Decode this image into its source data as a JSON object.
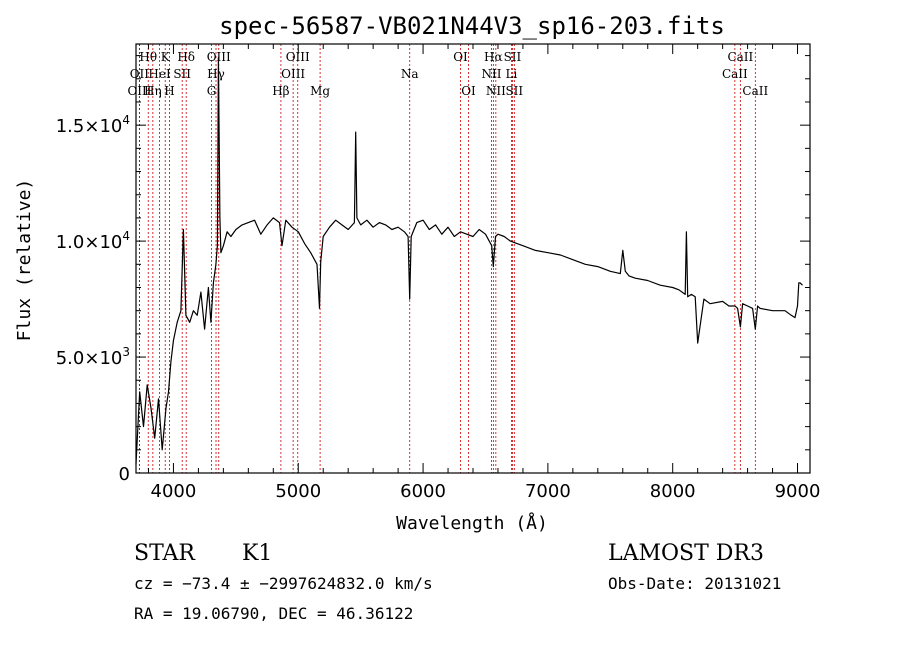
{
  "chart_data": {
    "type": "line",
    "title": "spec-56587-VB021N44V3_sp16-203.fits",
    "xlabel": "Wavelength (Å)",
    "ylabel": "Flux (relative)",
    "xlim": [
      3700,
      9100
    ],
    "ylim": [
      0,
      18500
    ],
    "x_ticks": [
      4000,
      5000,
      6000,
      7000,
      8000,
      9000
    ],
    "x_tick_labels": [
      "4000",
      "5000",
      "6000",
      "7000",
      "8000",
      "9000"
    ],
    "y_ticks": [
      0,
      5000,
      10000,
      15000
    ],
    "y_tick_labels": [
      {
        "mant": "0",
        "exp": ""
      },
      {
        "mant": "5.0×10",
        "exp": "3"
      },
      {
        "mant": "1.0×10",
        "exp": "4"
      },
      {
        "mant": "1.5×10",
        "exp": "4"
      }
    ],
    "series": [
      {
        "x": [
          3700,
          3730,
          3760,
          3790,
          3820,
          3850,
          3880,
          3910,
          3940,
          3960,
          3980,
          4000,
          4030,
          4060,
          4080,
          4100,
          4130,
          4160,
          4190,
          4220,
          4250,
          4280,
          4300,
          4320,
          4340,
          4352,
          4360,
          4372,
          4380,
          4400,
          4430,
          4460,
          4500,
          4550,
          4600,
          4650,
          4700,
          4750,
          4800,
          4850,
          4870,
          4900,
          4950,
          5000,
          5050,
          5100,
          5150,
          5170,
          5180,
          5200,
          5250,
          5300,
          5350,
          5400,
          5450,
          5460,
          5470,
          5500,
          5550,
          5600,
          5650,
          5700,
          5750,
          5800,
          5850,
          5880,
          5893,
          5905,
          5950,
          6000,
          6050,
          6100,
          6150,
          6200,
          6250,
          6300,
          6350,
          6400,
          6450,
          6500,
          6550,
          6563,
          6580,
          6600,
          6650,
          6700,
          6750,
          6800,
          6900,
          7000,
          7100,
          7200,
          7300,
          7400,
          7500,
          7580,
          7600,
          7620,
          7650,
          7700,
          7800,
          7900,
          8000,
          8050,
          8100,
          8110,
          8120,
          8150,
          8180,
          8200,
          8250,
          8300,
          8400,
          8450,
          8500,
          8520,
          8542,
          8560,
          8600,
          8640,
          8662,
          8680,
          8700,
          8800,
          8900,
          8950,
          8980,
          9000,
          9010,
          9020,
          9040
        ],
        "y": [
          400,
          3500,
          2000,
          3800,
          2800,
          1500,
          3200,
          1000,
          2800,
          3500,
          4800,
          5700,
          6500,
          7000,
          10500,
          6800,
          6500,
          7000,
          6800,
          7800,
          6200,
          8000,
          6500,
          8200,
          9000,
          9800,
          17900,
          11000,
          9500,
          9800,
          10400,
          10200,
          10500,
          10700,
          10800,
          10900,
          10300,
          10700,
          11000,
          10800,
          9800,
          10900,
          10600,
          10400,
          9900,
          9500,
          9000,
          7100,
          9100,
          10200,
          10600,
          10900,
          10700,
          10500,
          10800,
          14700,
          11000,
          10700,
          10900,
          10600,
          10800,
          10700,
          10500,
          10600,
          10400,
          10200,
          7500,
          10200,
          10800,
          10900,
          10500,
          10700,
          10300,
          10600,
          10200,
          10400,
          10300,
          10200,
          10500,
          10300,
          9800,
          8900,
          10200,
          10300,
          10200,
          10000,
          9900,
          9800,
          9600,
          9500,
          9400,
          9200,
          9000,
          8900,
          8700,
          8600,
          9600,
          8700,
          8500,
          8400,
          8300,
          8100,
          8000,
          7900,
          7700,
          10400,
          7600,
          7700,
          7600,
          5600,
          7500,
          7300,
          7400,
          7200,
          7200,
          7100,
          6300,
          7300,
          7200,
          7100,
          6200,
          7200,
          7100,
          7000,
          7000,
          6800,
          6700,
          7200,
          8200,
          8200,
          8100
        ]
      }
    ],
    "line_markers": [
      {
        "label": "Hθ",
        "x": 3798,
        "row": 0
      },
      {
        "label": "OII",
        "x": 3727,
        "row": 1
      },
      {
        "label": "OIII",
        "x": 3728,
        "row": 2
      },
      {
        "label": "K",
        "x": 3934,
        "row": 0
      },
      {
        "label": "HeI",
        "x": 3889,
        "row": 1
      },
      {
        "label": "Hη",
        "x": 3835,
        "row": 2
      },
      {
        "label": "Hδ",
        "x": 4102,
        "row": 0
      },
      {
        "label": "SII",
        "x": 4070,
        "row": 1
      },
      {
        "label": "H",
        "x": 3968,
        "row": 2
      },
      {
        "label": "OIII",
        "x": 4363,
        "row": 0
      },
      {
        "label": "Hγ",
        "x": 4341,
        "row": 1
      },
      {
        "label": "G",
        "x": 4305,
        "row": 2
      },
      {
        "label": "OIII",
        "x": 4996,
        "row": 0
      },
      {
        "label": "OIII",
        "x": 4959,
        "row": 1
      },
      {
        "label": "Hβ",
        "x": 4861,
        "row": 2
      },
      {
        "label": "Mg",
        "x": 5175,
        "row": 2
      },
      {
        "label": "Na",
        "x": 5893,
        "row": 1
      },
      {
        "label": "OI",
        "x": 6300,
        "row": 0
      },
      {
        "label": "OI",
        "x": 6364,
        "row": 2
      },
      {
        "label": "Hα",
        "x": 6563,
        "row": 0
      },
      {
        "label": "SII",
        "x": 6716,
        "row": 0
      },
      {
        "label": "NII",
        "x": 6548,
        "row": 1
      },
      {
        "label": "Li",
        "x": 6708,
        "row": 1
      },
      {
        "label": "NII",
        "x": 6583,
        "row": 2
      },
      {
        "label": "SII",
        "x": 6731,
        "row": 2
      },
      {
        "label": "CaII",
        "x": 8542,
        "row": 0
      },
      {
        "label": "CaII",
        "x": 8498,
        "row": 1
      },
      {
        "label": "CaII",
        "x": 8662,
        "row": 2
      }
    ]
  },
  "info": {
    "object_class": "STAR",
    "subclass": "K1",
    "survey": "LAMOST DR3",
    "cz_line": "cz = −73.4 ± −2997624832.0 km/s",
    "obs_date": "Obs-Date: 20131021",
    "coords": "RA =  19.06790, DEC =  46.36122"
  },
  "colors": {
    "spectrum": "#000000",
    "marker_lines": "#cc0000",
    "frame": "#000000"
  }
}
